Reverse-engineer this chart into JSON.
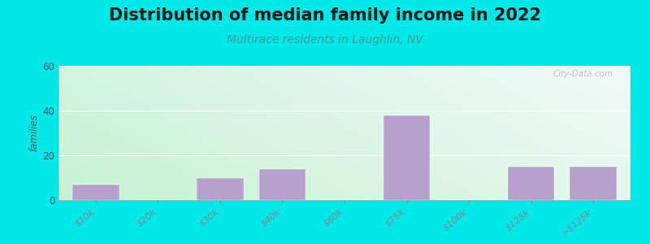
{
  "title": "Distribution of median family income in 2022",
  "subtitle": "Multirace residents in Laughlin, NV",
  "categories": [
    "$10k",
    "$20k",
    "$30k",
    "$40k",
    "$60k",
    "$75k",
    "$100k",
    "$125k",
    ">$125k"
  ],
  "values": [
    7,
    0,
    10,
    14,
    0,
    38,
    0,
    15,
    15
  ],
  "bar_color": "#b8a0cc",
  "background_color": "#00e8e8",
  "ylabel": "families",
  "ylim": [
    0,
    60
  ],
  "yticks": [
    0,
    20,
    40,
    60
  ],
  "title_fontsize": 15,
  "subtitle_fontsize": 10,
  "subtitle_color": "#4a9a9a",
  "watermark": "City-Data.com",
  "grad_topleft": [
    0.82,
    0.96,
    0.88
  ],
  "grad_topright": [
    0.95,
    0.98,
    0.98
  ],
  "grad_bottomleft": [
    0.78,
    0.95,
    0.82
  ],
  "grad_bottomright": [
    0.9,
    0.97,
    0.92
  ]
}
